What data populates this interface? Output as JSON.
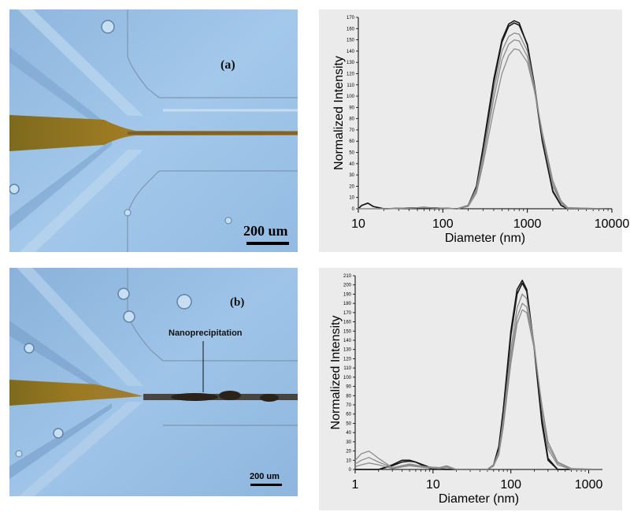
{
  "micrographs": [
    {
      "panel_label": "(a)",
      "scale_bar_label": "200 um"
    },
    {
      "panel_label": "(b)",
      "scale_bar_label": "200 um",
      "annotation": "Nanoprecipitation"
    }
  ],
  "colors": {
    "micro_background": "#9cc2e6",
    "channel_dark": "#5a4a2e",
    "focused_stream": "#8a6a18",
    "plot_background": "#ebebeb",
    "series_dark": "#1a1a1a",
    "series_gray": "#8c8c8c"
  },
  "chart_data": [
    {
      "type": "line",
      "xscale": "log",
      "xlim": [
        10,
        10000
      ],
      "ylim": [
        0,
        170
      ],
      "xticks": [
        "10",
        "100",
        "1000",
        "10000"
      ],
      "yticks": [
        0,
        10,
        20,
        30,
        40,
        50,
        60,
        70,
        80,
        90,
        100,
        110,
        120,
        130,
        140,
        150,
        160,
        170
      ],
      "xlabel": "Diameter (nm)",
      "ylabel": "Normalized Intensity",
      "grid": false,
      "series": [
        {
          "color": "dark",
          "x": [
            10,
            11,
            13,
            15,
            20,
            60,
            150,
            200,
            250,
            300,
            400,
            500,
            600,
            700,
            800,
            1000,
            1200,
            1500,
            2000,
            2500,
            3000,
            8000
          ],
          "y": [
            0,
            3,
            5,
            2,
            0,
            1,
            0,
            3,
            20,
            55,
            115,
            150,
            164,
            167,
            165,
            145,
            110,
            60,
            15,
            3,
            0,
            0
          ]
        },
        {
          "color": "dark",
          "x": [
            10,
            11,
            13,
            15,
            20,
            60,
            150,
            200,
            250,
            300,
            400,
            500,
            600,
            700,
            800,
            1000,
            1200,
            1500,
            2000,
            2500,
            3000,
            8000
          ],
          "y": [
            0,
            3,
            5,
            2,
            0,
            1,
            0,
            3,
            18,
            52,
            112,
            148,
            162,
            165,
            163,
            146,
            112,
            62,
            16,
            3,
            0,
            0
          ]
        },
        {
          "color": "gray",
          "x": [
            10,
            20,
            60,
            150,
            200,
            250,
            300,
            400,
            500,
            600,
            700,
            800,
            1000,
            1200,
            1500,
            2000,
            2500,
            3000,
            8000
          ],
          "y": [
            0,
            0,
            1,
            0,
            3,
            18,
            48,
            105,
            140,
            153,
            156,
            155,
            140,
            110,
            65,
            20,
            5,
            0,
            0
          ]
        },
        {
          "color": "gray",
          "x": [
            10,
            20,
            60,
            150,
            200,
            250,
            300,
            400,
            500,
            600,
            700,
            800,
            1000,
            1200,
            1500,
            2000,
            2500,
            3000,
            8000
          ],
          "y": [
            0,
            0,
            1,
            0,
            3,
            16,
            45,
            98,
            132,
            146,
            150,
            149,
            135,
            108,
            66,
            22,
            6,
            1,
            0
          ]
        },
        {
          "color": "gray",
          "x": [
            10,
            20,
            60,
            150,
            200,
            250,
            300,
            400,
            500,
            600,
            700,
            800,
            1000,
            1200,
            1500,
            2000,
            2500,
            3000,
            8000
          ],
          "y": [
            0,
            0,
            1,
            0,
            2,
            14,
            40,
            88,
            120,
            136,
            142,
            141,
            130,
            106,
            68,
            25,
            7,
            1,
            0
          ]
        }
      ]
    },
    {
      "type": "line",
      "xscale": "log",
      "xlim": [
        1,
        1500
      ],
      "ylim": [
        0,
        210
      ],
      "xticks": [
        "1",
        "10",
        "100",
        "1000"
      ],
      "yticks": [
        0,
        10,
        20,
        30,
        40,
        50,
        60,
        70,
        80,
        90,
        100,
        110,
        120,
        130,
        140,
        150,
        160,
        170,
        180,
        190,
        200,
        210
      ],
      "xlabel": "Diameter (nm)",
      "ylabel": "Normalized Intensity",
      "grid": false,
      "series": [
        {
          "color": "dark",
          "x": [
            1,
            2,
            3,
            4,
            5,
            6,
            8,
            10,
            15,
            50,
            60,
            70,
            80,
            100,
            120,
            140,
            160,
            200,
            250,
            300,
            400,
            1500
          ],
          "y": [
            0,
            0,
            5,
            10,
            10,
            8,
            3,
            0,
            0,
            0,
            5,
            25,
            65,
            150,
            195,
            205,
            195,
            130,
            50,
            10,
            0,
            0
          ]
        },
        {
          "color": "dark",
          "x": [
            1,
            2,
            3,
            4,
            5,
            6,
            8,
            10,
            15,
            50,
            60,
            70,
            80,
            100,
            120,
            140,
            160,
            200,
            250,
            300,
            400,
            1500
          ],
          "y": [
            0,
            0,
            4,
            8,
            9,
            8,
            4,
            1,
            0,
            0,
            4,
            22,
            60,
            145,
            190,
            202,
            193,
            132,
            55,
            12,
            0,
            0
          ]
        },
        {
          "color": "gray",
          "x": [
            1,
            1.2,
            1.5,
            2,
            3,
            5,
            8,
            12,
            15,
            20,
            50,
            60,
            70,
            80,
            100,
            120,
            140,
            160,
            200,
            250,
            300,
            400,
            600,
            1500
          ],
          "y": [
            10,
            17,
            20,
            12,
            2,
            6,
            3,
            2,
            4,
            0,
            0,
            5,
            20,
            55,
            130,
            175,
            190,
            185,
            135,
            65,
            22,
            5,
            0,
            0
          ]
        },
        {
          "color": "gray",
          "x": [
            1,
            1.2,
            1.5,
            2,
            3,
            5,
            8,
            12,
            15,
            20,
            50,
            60,
            70,
            80,
            100,
            120,
            140,
            160,
            200,
            250,
            300,
            400,
            600,
            1500
          ],
          "y": [
            6,
            10,
            13,
            8,
            2,
            5,
            3,
            2,
            3,
            0,
            0,
            5,
            18,
            50,
            122,
            165,
            180,
            176,
            132,
            68,
            26,
            7,
            0,
            0
          ]
        },
        {
          "color": "gray",
          "x": [
            1,
            1.2,
            1.5,
            2,
            3,
            5,
            8,
            12,
            15,
            20,
            50,
            60,
            70,
            80,
            100,
            120,
            140,
            160,
            200,
            250,
            300,
            400,
            600,
            1500
          ],
          "y": [
            3,
            5,
            7,
            5,
            1,
            4,
            2,
            1,
            2,
            0,
            0,
            4,
            16,
            46,
            115,
            158,
            173,
            170,
            130,
            70,
            30,
            8,
            1,
            0
          ]
        }
      ]
    }
  ]
}
